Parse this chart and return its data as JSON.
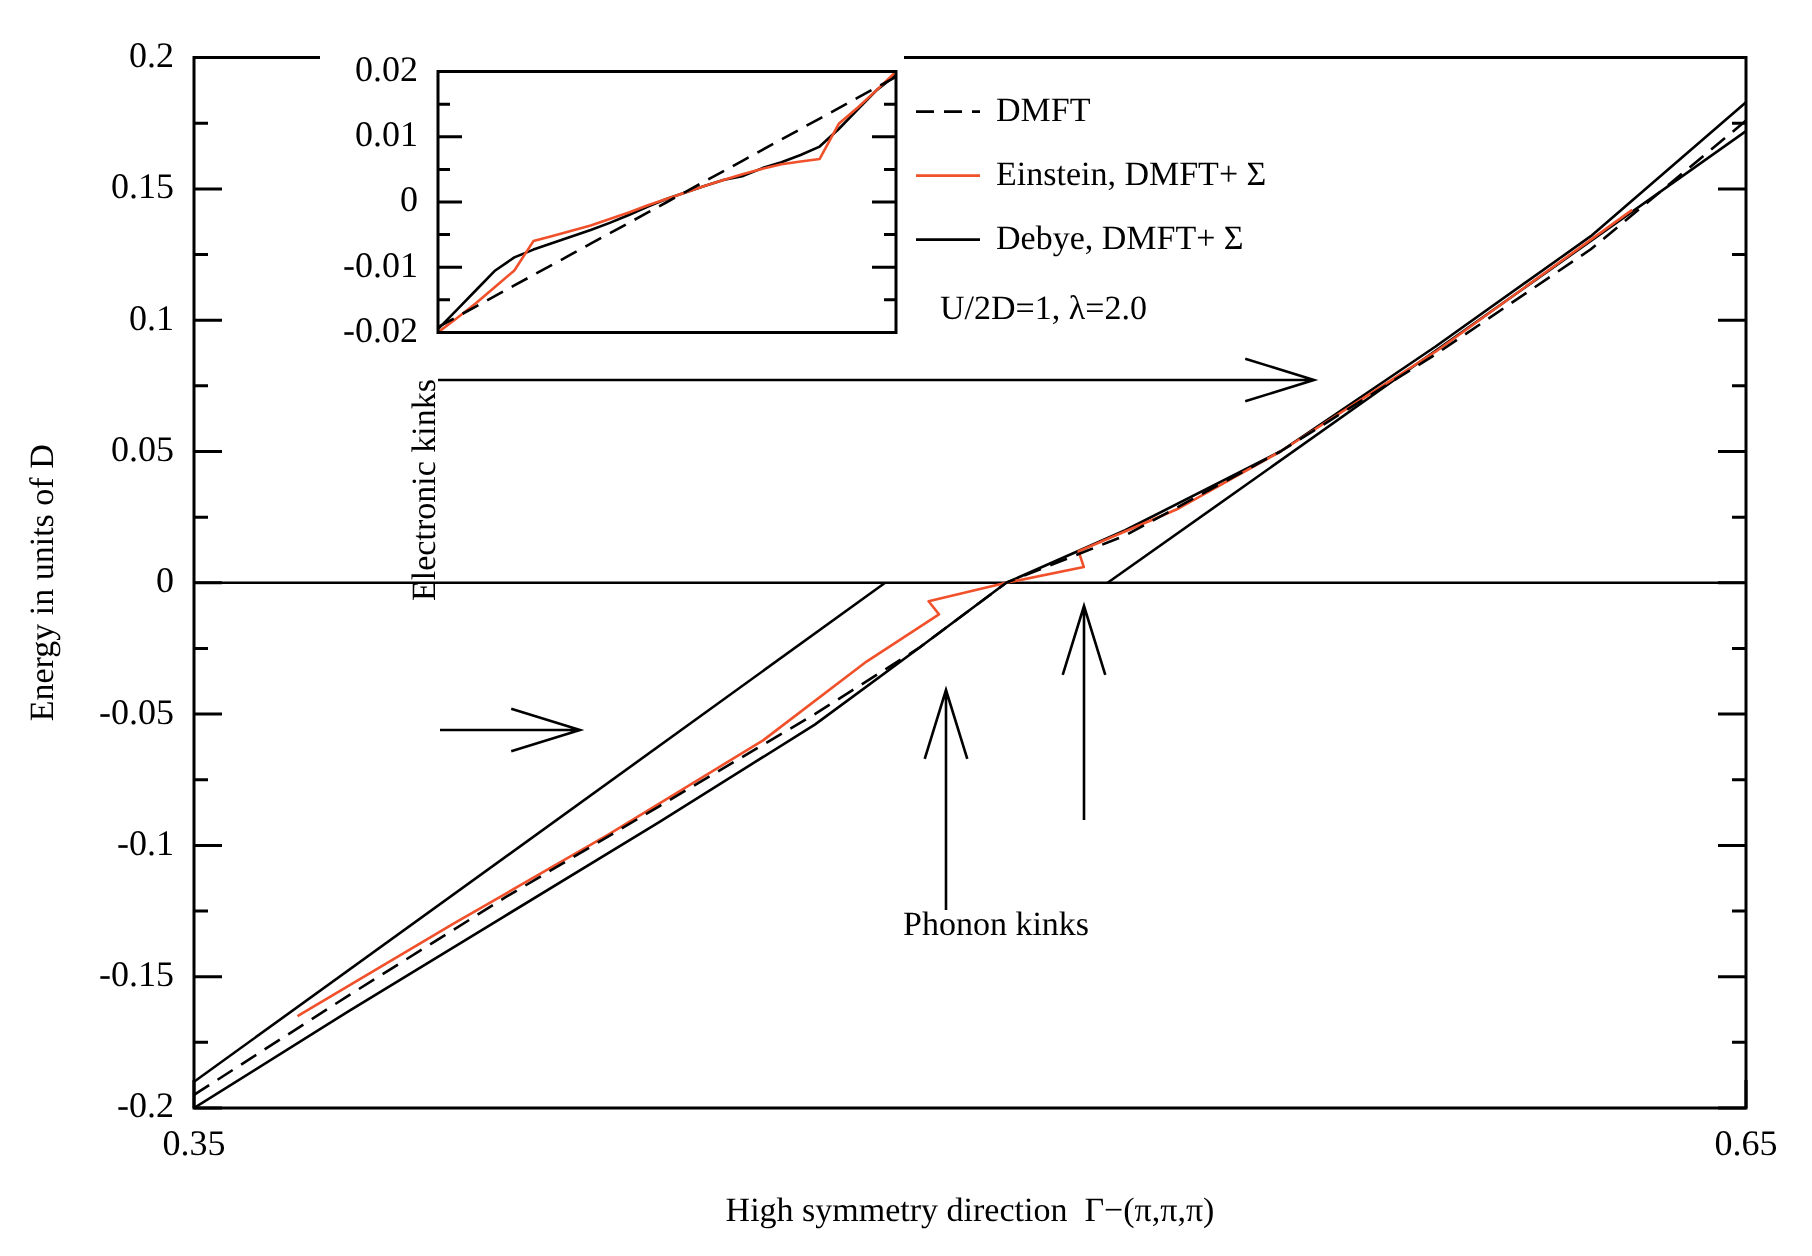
{
  "chart_data": [
    {
      "type": "line",
      "xlabel": "High symmetry direction  Γ−(π,π,π)",
      "ylabel": "Energy in units of D",
      "xlim": [
        0.35,
        0.65
      ],
      "xticks": [
        0.35,
        0.65
      ],
      "ylim": [
        -0.2,
        0.2
      ],
      "yticks": [
        -0.2,
        {
          "value": -0.175,
          "label": null
        },
        -0.15,
        {
          "value": -0.125,
          "label": null
        },
        -0.1,
        {
          "value": -0.075,
          "label": null
        },
        -0.05,
        {
          "value": -0.025,
          "label": null
        },
        0,
        {
          "value": 0.025,
          "label": null
        },
        0.05,
        {
          "value": 0.075,
          "label": null
        },
        0.1,
        {
          "value": 0.125,
          "label": null
        },
        0.15,
        {
          "value": 0.175,
          "label": null
        },
        0.2
      ],
      "grid": false,
      "legend": "top right",
      "marker": "none",
      "ref_lines": [
        {
          "axis": "y",
          "value": 0,
          "color": "#000000"
        }
      ],
      "annotations": [
        "U/2D=1, λ=2.0",
        "Electronic kinks",
        "Phonon kinks"
      ],
      "series": [
        {
          "name": "DMFT",
          "color": "#000000",
          "line_style": "dashed",
          "x": [
            0.35,
            0.38,
            0.41,
            0.44,
            0.47,
            0.49,
            0.507,
            0.53,
            0.56,
            0.59,
            0.62,
            0.65
          ],
          "values": [
            -0.195,
            -0.157,
            -0.12,
            -0.085,
            -0.05,
            -0.025,
            0,
            0.018,
            0.05,
            0.087,
            0.127,
            0.176
          ]
        },
        {
          "name": "Einstein, DMFT+ Σ",
          "color": "#f0502a",
          "line_style": "solid",
          "x": [
            0.37,
            0.4,
            0.43,
            0.46,
            0.48,
            0.494,
            0.492,
            0.507,
            0.522,
            0.521,
            0.54,
            0.56,
            0.59,
            0.628
          ],
          "values": [
            -0.165,
            -0.13,
            -0.096,
            -0.06,
            -0.03,
            -0.012,
            -0.007,
            0,
            0.006,
            0.012,
            0.028,
            0.05,
            0.088,
            0.142
          ]
        },
        {
          "name": "Debye, DMFT+ Σ",
          "color": "#000000",
          "line_style": "solid",
          "x": [
            0.35,
            0.38,
            0.41,
            0.44,
            0.47,
            0.49,
            0.507,
            0.53,
            0.56,
            0.59,
            0.62,
            0.65
          ],
          "values": [
            -0.2,
            -0.163,
            -0.127,
            -0.091,
            -0.054,
            -0.025,
            0,
            0.02,
            0.05,
            0.09,
            0.132,
            0.183
          ]
        },
        {
          "color": "#000000",
          "line_style": "solid",
          "x": [
            0.35,
            0.4836
          ],
          "values": [
            -0.19,
            0
          ]
        },
        {
          "color": "#000000",
          "line_style": "solid",
          "x": [
            0.5266,
            0.65
          ],
          "values": [
            0,
            0.172
          ]
        }
      ]
    },
    {
      "type": "line",
      "categories": [
        null,
        null,
        null,
        null,
        null,
        null,
        null,
        null,
        null,
        null,
        null,
        null,
        null,
        null,
        null,
        null,
        null,
        null,
        null,
        null,
        null,
        null,
        null,
        null,
        null
      ],
      "ylim": [
        -0.02,
        0.02
      ],
      "yticks": [
        -0.02,
        {
          "value": -0.015,
          "label": null
        },
        -0.01,
        {
          "value": -0.005,
          "label": null
        },
        0,
        {
          "value": 0.005,
          "label": null
        },
        0.01,
        {
          "value": 0.015,
          "label": null
        },
        0.02
      ],
      "tick_labels": "y",
      "grid": false,
      "marker": "none",
      "series": [
        {
          "color": "#000000",
          "line_style": "dashed",
          "values": [
            -0.0192,
            -0.0176,
            -0.016,
            -0.0144,
            -0.0128,
            -0.0112,
            -0.0096,
            -0.008,
            -0.0064,
            -0.0048,
            -0.0032,
            -0.0016,
            0,
            0.0016,
            0.0032,
            0.0048,
            0.0064,
            0.008,
            0.0096,
            0.0112,
            0.0128,
            0.0144,
            0.016,
            0.0176,
            0.0192
          ]
        },
        {
          "color": "#f0502a",
          "line_style": "solid",
          "values": [
            -0.02,
            -0.0178,
            -0.0155,
            -0.013,
            -0.0105,
            -0.006,
            -0.0052,
            -0.0044,
            -0.0036,
            -0.0026,
            -0.0016,
            -0.0005,
            0.0005,
            0.0015,
            0.0025,
            0.0034,
            0.0043,
            0.0051,
            0.0058,
            0.0062,
            0.0066,
            0.012,
            0.0145,
            0.0172,
            0.02
          ]
        },
        {
          "color": "#000000",
          "line_style": "solid",
          "values": [
            -0.0195,
            -0.0165,
            -0.0135,
            -0.0105,
            -0.0085,
            -0.0073,
            -0.0063,
            -0.0053,
            -0.0043,
            -0.0032,
            -0.002,
            -0.0007,
            0.0005,
            0.0015,
            0.0025,
            0.0034,
            0.004,
            0.0052,
            0.0061,
            0.0072,
            0.0085,
            0.0112,
            0.0142,
            0.0172,
            0.0195
          ]
        }
      ]
    }
  ]
}
